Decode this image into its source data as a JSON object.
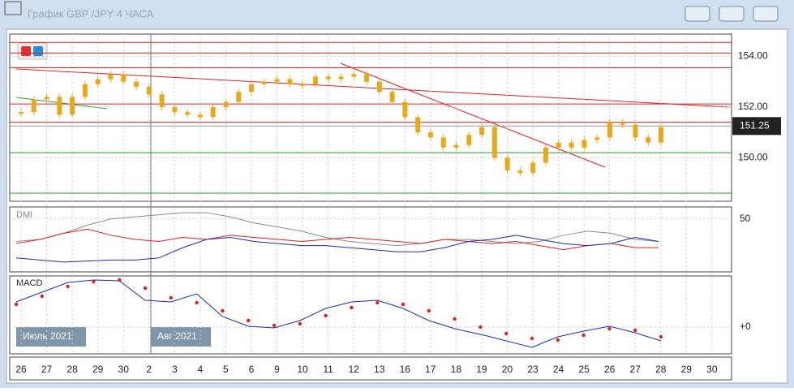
{
  "window": {
    "title": "График GBP /JPY  4 ЧАСА"
  },
  "price_panel": {
    "ylim": [
      148.28,
      154.88
    ],
    "yticks": [
      {
        "value": 154,
        "label": "154.00"
      },
      {
        "value": 152,
        "label": "152.00"
      },
      {
        "value": 150,
        "label": "150.00"
      }
    ],
    "current": {
      "value": 151.25,
      "label": "151.25"
    },
    "levels": [
      {
        "value": 154.55,
        "color": "#e02020"
      },
      {
        "value": 154.13,
        "color": "#e02020"
      },
      {
        "value": 153.55,
        "color": "#e02020"
      },
      {
        "value": 152.12,
        "color": "#e02020"
      },
      {
        "value": 151.4,
        "color": "#e02020"
      },
      {
        "value": 150.2,
        "color": "#2a9a2a"
      },
      {
        "value": 148.6,
        "color": "#2a9a2a"
      }
    ],
    "close": [
      151.8,
      152.3,
      152.4,
      151.7,
      152.4,
      152.9,
      153.1,
      153.3,
      153.0,
      152.8,
      152.5,
      152.0,
      151.8,
      151.7,
      151.6,
      152.0,
      152.2,
      152.6,
      152.9,
      153.0,
      153.1,
      152.9,
      152.9,
      153.2,
      153.1,
      153.2,
      153.3,
      153.0,
      152.6,
      152.2,
      151.6,
      151.0,
      150.8,
      150.4,
      150.5,
      150.9,
      151.2,
      150.0,
      149.5,
      149.4,
      149.8,
      150.4,
      150.6,
      150.4,
      150.7,
      150.8,
      151.4,
      151.3,
      150.8,
      150.6,
      151.2
    ],
    "color": "#e8a81c"
  },
  "dmi_panel": {
    "label": "DMI",
    "ylim": [
      0,
      60
    ],
    "yticks": [
      50
    ],
    "series": [
      {
        "color": "#8a8a8a",
        "values": [
          28,
          30,
          36,
          44,
          50,
          52,
          54,
          56,
          56,
          52,
          46,
          42,
          38,
          32,
          28,
          26,
          24,
          26,
          30,
          30,
          28,
          26,
          28,
          34,
          38,
          36,
          30,
          28
        ]
      },
      {
        "color": "#e02020",
        "values": [
          26,
          30,
          36,
          40,
          34,
          30,
          28,
          32,
          30,
          34,
          32,
          30,
          28,
          30,
          32,
          30,
          28,
          26,
          30,
          28,
          26,
          28,
          24,
          20,
          24,
          26,
          22,
          22
        ]
      },
      {
        "color": "#1c2cb0",
        "values": [
          12,
          10,
          8,
          9,
          10,
          10,
          12,
          22,
          30,
          32,
          28,
          26,
          24,
          24,
          22,
          20,
          18,
          18,
          22,
          28,
          30,
          34,
          30,
          26,
          24,
          26,
          32,
          28
        ]
      }
    ]
  },
  "macd_panel": {
    "label": "MACD",
    "ylim": [
      -32,
      63
    ],
    "yticks": [
      {
        "value": 0,
        "label": "+0"
      }
    ],
    "series": [
      {
        "color": "#1c2cb0",
        "dots": false,
        "values": [
          31,
          43,
          55,
          58,
          57,
          33,
          31,
          41,
          13,
          1,
          -1,
          8,
          23,
          31,
          33,
          23,
          8,
          -2,
          -9,
          -17,
          -25,
          -12,
          -5,
          1,
          -7,
          -17
        ]
      },
      {
        "color": "#e02020",
        "dots": true,
        "values": [
          28,
          38,
          50,
          56,
          58,
          48,
          36,
          30,
          20,
          8,
          2,
          4,
          14,
          24,
          30,
          28,
          20,
          10,
          0,
          -8,
          -14,
          -16,
          -10,
          -2,
          -4,
          -12
        ]
      }
    ]
  },
  "x_axis": {
    "labels": [
      "26",
      "27",
      "28",
      "29",
      "30",
      "2",
      "3",
      "4",
      "5",
      "6",
      "9",
      "10",
      "11",
      "12",
      "13",
      "16",
      "17",
      "18",
      "19",
      "20",
      "23",
      "24",
      "25",
      "26",
      "27",
      "28",
      "29",
      "30"
    ]
  },
  "month_labels": [
    "Июль 2021",
    "Авг 2021"
  ]
}
